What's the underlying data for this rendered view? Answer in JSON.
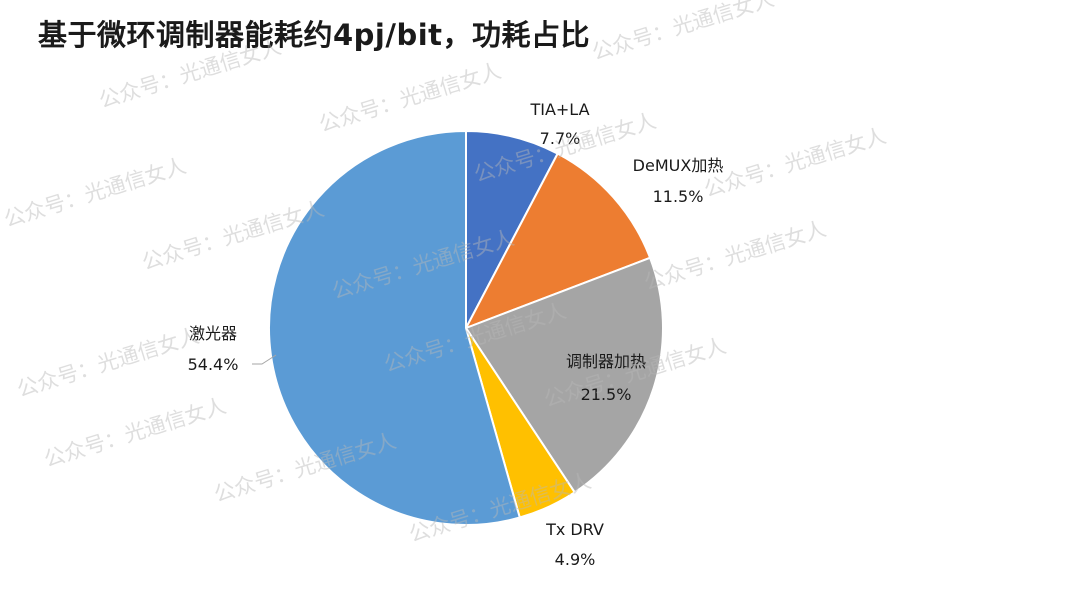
{
  "title": "基于微环调制器能耗约4pj/bit，功耗占比",
  "watermark": "公众号：光通信女人",
  "chart_data": {
    "type": "pie",
    "title": "",
    "slices": [
      {
        "label": "TIA+LA",
        "value": 7.7,
        "value_label": "7.7%",
        "color": "#4472C4"
      },
      {
        "label": "DeMUX加热",
        "value": 11.5,
        "value_label": "11.5%",
        "color": "#ED7D31"
      },
      {
        "label": "调制器加热",
        "value": 21.5,
        "value_label": "21.5%",
        "color": "#A5A5A5"
      },
      {
        "label": "Tx DRV",
        "value": 4.9,
        "value_label": "4.9%",
        "color": "#FFC000"
      },
      {
        "label": "激光器",
        "value": 54.4,
        "value_label": "54.4%",
        "color": "#5B9BD5"
      }
    ]
  }
}
